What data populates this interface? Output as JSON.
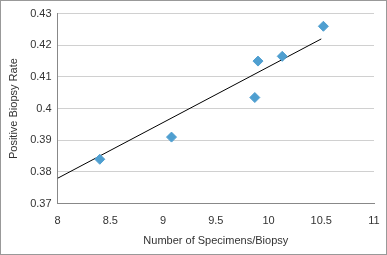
{
  "chart_data": {
    "type": "scatter",
    "x_label": "Number of Specimens/Biopsy",
    "y_label": "Positive Biopsy Rate",
    "x": [
      8.4,
      9.08,
      9.87,
      9.9,
      10.13,
      10.52
    ],
    "values": [
      0.384,
      0.391,
      0.4035,
      0.415,
      0.4165,
      0.426
    ],
    "color": "#4f9fd0",
    "marker": "diamond",
    "trendline": {
      "x": [
        8,
        10.5
      ],
      "values": [
        0.378,
        0.422
      ],
      "color": "#000000"
    },
    "xlim": [
      8,
      11
    ],
    "xticks": [
      8,
      8.5,
      9,
      9.5,
      10,
      10.5,
      11
    ],
    "ylim": [
      0.37,
      0.43
    ],
    "yticks": [
      0.37,
      0.38,
      0.39,
      0.4,
      0.41,
      0.42,
      0.43
    ],
    "grid": "y"
  }
}
